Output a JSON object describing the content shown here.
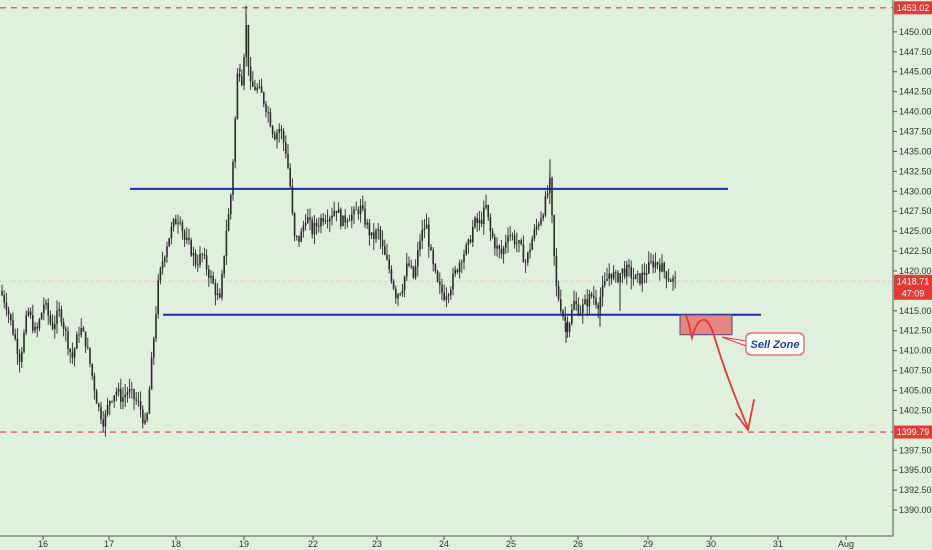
{
  "chart_data": {
    "type": "candlestick",
    "grid": false,
    "colors": {
      "background": "#dff0dc",
      "candle": "#2a2a2a",
      "level_line": "#1530b8",
      "dashed_level": "#e53935",
      "price_tag_red": "#e53935",
      "current_price_line": "#e8a7a4",
      "sell_zone_fill": "#e57373",
      "arrow": "#e53935"
    },
    "y_axis": {
      "ylim": [
        1388.0,
        1453.5
      ],
      "tick_labels": [
        "1390.00",
        "1392.50",
        "1395.00",
        "1397.50",
        "1402.50",
        "1405.00",
        "1407.50",
        "1410.00",
        "1412.50",
        "1415.00",
        "1417.50",
        "1420.00",
        "1422.50",
        "1425.00",
        "1427.50",
        "1430.00",
        "1432.50",
        "1435.00",
        "1437.50",
        "1440.00",
        "1442.50",
        "1445.00",
        "1447.50",
        "1450.00"
      ]
    },
    "x_axis": {
      "tick_labels": [
        "16",
        "17",
        "18",
        "19",
        "22",
        "23",
        "24",
        "25",
        "26",
        "29",
        "30",
        "31",
        "Aug"
      ]
    },
    "price_tags": [
      {
        "name": "top-level",
        "value": 1453.02,
        "label": "1453.02",
        "style": "red"
      },
      {
        "name": "current-price",
        "value": 1418.71,
        "label": "1418.71",
        "style": "red"
      },
      {
        "name": "countdown",
        "value": 1417.2,
        "label": "47:09",
        "style": "red"
      },
      {
        "name": "bottom-level",
        "value": 1399.79,
        "label": "1399.79",
        "style": "red"
      }
    ],
    "levels": [
      {
        "name": "resistance",
        "value": 1430.3
      },
      {
        "name": "support",
        "value": 1414.5
      }
    ],
    "dashed_levels": [
      1453.02,
      1399.79
    ],
    "current_price": 1418.71,
    "sell_zone": {
      "label": "Sell Zone",
      "from": 1412.0,
      "to": 1414.5
    },
    "price_path": [
      [
        0,
        1417.5
      ],
      [
        6,
        1416
      ],
      [
        12,
        1413
      ],
      [
        20,
        1409
      ],
      [
        28,
        1415
      ],
      [
        36,
        1412
      ],
      [
        44,
        1416
      ],
      [
        52,
        1413
      ],
      [
        60,
        1415
      ],
      [
        66,
        1412
      ],
      [
        72,
        1409
      ],
      [
        80,
        1413
      ],
      [
        86,
        1411
      ],
      [
        92,
        1407
      ],
      [
        98,
        1403
      ],
      [
        104,
        1401
      ],
      [
        110,
        1404
      ],
      [
        116,
        1405
      ],
      [
        122,
        1404
      ],
      [
        128,
        1405
      ],
      [
        134,
        1404
      ],
      [
        140,
        1403
      ],
      [
        146,
        1400
      ],
      [
        150,
        1406
      ],
      [
        154,
        1412
      ],
      [
        158,
        1418
      ],
      [
        162,
        1421
      ],
      [
        168,
        1424
      ],
      [
        174,
        1426
      ],
      [
        180,
        1427
      ],
      [
        184,
        1424
      ],
      [
        190,
        1423
      ],
      [
        196,
        1421
      ],
      [
        202,
        1422
      ],
      [
        208,
        1420
      ],
      [
        214,
        1418
      ],
      [
        220,
        1416
      ],
      [
        226,
        1425
      ],
      [
        230,
        1428
      ],
      [
        234,
        1436
      ],
      [
        238,
        1446
      ],
      [
        242,
        1444
      ],
      [
        246,
        1451
      ],
      [
        250,
        1443
      ],
      [
        256,
        1443
      ],
      [
        262,
        1442
      ],
      [
        268,
        1440
      ],
      [
        274,
        1437
      ],
      [
        280,
        1438
      ],
      [
        286,
        1435
      ],
      [
        290,
        1431
      ],
      [
        294,
        1424
      ],
      [
        300,
        1424
      ],
      [
        306,
        1427
      ],
      [
        312,
        1425
      ],
      [
        318,
        1426
      ],
      [
        324,
        1427
      ],
      [
        330,
        1427
      ],
      [
        336,
        1428
      ],
      [
        342,
        1426
      ],
      [
        348,
        1427
      ],
      [
        354,
        1427
      ],
      [
        360,
        1428
      ],
      [
        366,
        1426
      ],
      [
        372,
        1424
      ],
      [
        378,
        1425
      ],
      [
        384,
        1422
      ],
      [
        390,
        1420
      ],
      [
        396,
        1417
      ],
      [
        402,
        1418
      ],
      [
        408,
        1421
      ],
      [
        414,
        1419
      ],
      [
        420,
        1424
      ],
      [
        426,
        1426
      ],
      [
        432,
        1421
      ],
      [
        438,
        1418
      ],
      [
        444,
        1417
      ],
      [
        450,
        1418
      ],
      [
        456,
        1420
      ],
      [
        462,
        1422
      ],
      [
        468,
        1423
      ],
      [
        474,
        1426
      ],
      [
        480,
        1426
      ],
      [
        486,
        1428
      ],
      [
        490,
        1425
      ],
      [
        496,
        1423
      ],
      [
        502,
        1422
      ],
      [
        508,
        1425
      ],
      [
        514,
        1424
      ],
      [
        520,
        1423
      ],
      [
        526,
        1421
      ],
      [
        532,
        1424
      ],
      [
        538,
        1426
      ],
      [
        544,
        1428
      ],
      [
        550,
        1431
      ],
      [
        553,
        1424
      ],
      [
        556,
        1418
      ],
      [
        560,
        1416
      ],
      [
        564,
        1414
      ],
      [
        568,
        1413
      ],
      [
        574,
        1416
      ],
      [
        580,
        1415
      ],
      [
        586,
        1416
      ],
      [
        592,
        1417
      ],
      [
        598,
        1416
      ],
      [
        604,
        1418
      ],
      [
        610,
        1420
      ],
      [
        616,
        1419
      ],
      [
        622,
        1420
      ],
      [
        628,
        1420
      ],
      [
        634,
        1419
      ],
      [
        640,
        1419
      ],
      [
        646,
        1420
      ],
      [
        652,
        1421
      ],
      [
        658,
        1421
      ],
      [
        664,
        1420
      ],
      [
        670,
        1419
      ],
      [
        676,
        1418.71
      ]
    ],
    "spikes": [
      [
        246,
        1453.3
      ],
      [
        550,
        1434
      ],
      [
        240,
        1446
      ],
      [
        566,
        1411
      ],
      [
        600,
        1413
      ],
      [
        620,
        1415
      ]
    ]
  }
}
